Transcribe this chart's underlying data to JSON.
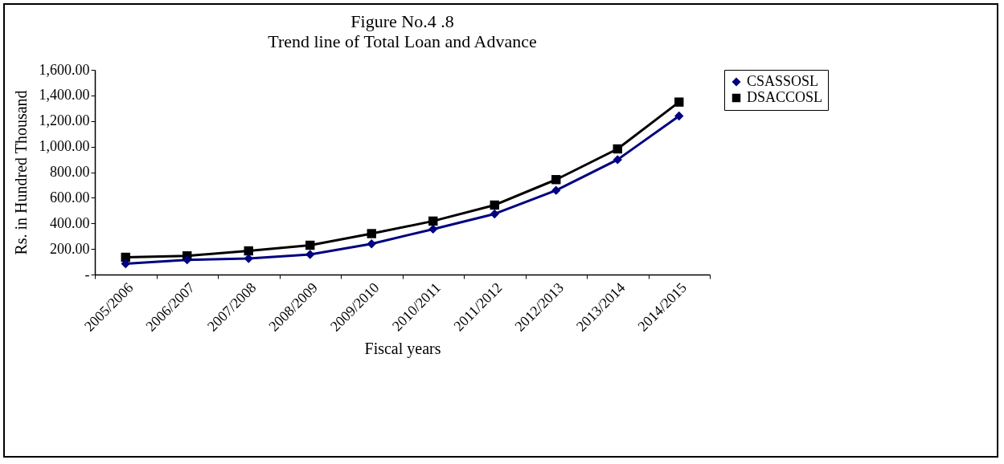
{
  "chart_data": {
    "type": "line",
    "title": "Figure No.4 .8",
    "subtitle": "Trend line of Total Loan and Advance",
    "xlabel": "Fiscal years",
    "ylabel": "Rs. in Hundred Thousand",
    "categories": [
      "2005/2006",
      "2006/2007",
      "2007/2008",
      "2008/2009",
      "2009/2010",
      "2010/2011",
      "2011/2012",
      "2012/2013",
      "2013/2014",
      "2014/2015"
    ],
    "series": [
      {
        "name": "CSASSOSL",
        "color": "#000080",
        "marker": "diamond",
        "values": [
          85,
          115,
          125,
          157,
          240,
          355,
          474,
          658,
          898,
          1239
        ]
      },
      {
        "name": "DSACCOSL",
        "color": "#000000",
        "marker": "square",
        "values": [
          135,
          146,
          185,
          229,
          320,
          418,
          543,
          742,
          982,
          1348
        ]
      }
    ],
    "ylim": [
      0,
      1600
    ],
    "yticks": [
      {
        "value": 0,
        "label": "-"
      },
      {
        "value": 200,
        "label": "200.00"
      },
      {
        "value": 400,
        "label": "400.00"
      },
      {
        "value": 600,
        "label": "600.00"
      },
      {
        "value": 800,
        "label": "800.00"
      },
      {
        "value": 1000,
        "label": "1,000.00"
      },
      {
        "value": 1200,
        "label": "1,200.00"
      },
      {
        "value": 1400,
        "label": "1,400.00"
      },
      {
        "value": 1600,
        "label": "1,600.00"
      }
    ],
    "grid": false,
    "legend": "right"
  }
}
